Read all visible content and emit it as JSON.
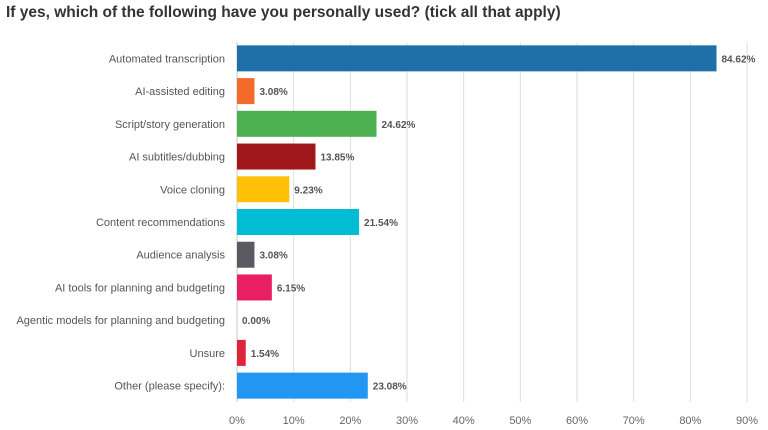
{
  "chart_data": {
    "type": "bar",
    "orientation": "horizontal",
    "title": "If yes, which of the following have you personally used? (tick all that apply)",
    "categories": [
      "Automated transcription",
      "AI-assisted editing",
      "Script/story generation",
      "AI subtitles/dubbing",
      "Voice cloning",
      "Content recommendations",
      "Audience analysis",
      "AI tools for planning and budgeting",
      "Agentic models for planning and budgeting",
      "Unsure",
      "Other (please specify):"
    ],
    "values": [
      84.62,
      3.08,
      24.62,
      13.85,
      9.23,
      21.54,
      3.08,
      6.15,
      0.0,
      1.54,
      23.08
    ],
    "value_labels": [
      "84.62%",
      "3.08%",
      "24.62%",
      "13.85%",
      "9.23%",
      "21.54%",
      "3.08%",
      "6.15%",
      "0.00%",
      "1.54%",
      "23.08%"
    ],
    "colors": [
      "#1f6fa8",
      "#f26b2a",
      "#4caf50",
      "#a1181c",
      "#ffc107",
      "#00bcd4",
      "#5b5961",
      "#e91e63",
      "#9e9e9e",
      "#e0243a",
      "#2196f3"
    ],
    "xlim": [
      0,
      90
    ],
    "xticks": [
      "0%",
      "10%",
      "20%",
      "30%",
      "40%",
      "50%",
      "60%",
      "70%",
      "80%",
      "90%"
    ],
    "grid": true,
    "legend": "none"
  }
}
